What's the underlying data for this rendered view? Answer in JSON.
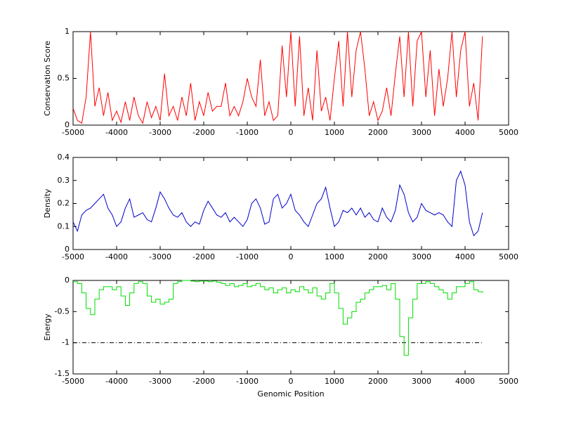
{
  "chart_data": [
    {
      "type": "line",
      "ylabel": "Conservation Score",
      "color": "#ff0000",
      "x": [
        -5000,
        -4900,
        -4800,
        -4700,
        -4600,
        -4500,
        -4400,
        -4300,
        -4200,
        -4100,
        -4000,
        -3900,
        -3800,
        -3700,
        -3600,
        -3500,
        -3400,
        -3300,
        -3200,
        -3100,
        -3000,
        -2900,
        -2800,
        -2700,
        -2600,
        -2500,
        -2400,
        -2300,
        -2200,
        -2100,
        -2000,
        -1900,
        -1800,
        -1700,
        -1600,
        -1500,
        -1400,
        -1300,
        -1200,
        -1100,
        -1000,
        -900,
        -800,
        -700,
        -600,
        -500,
        -400,
        -300,
        -200,
        -100,
        0,
        100,
        200,
        300,
        400,
        500,
        600,
        700,
        800,
        900,
        1000,
        1100,
        1200,
        1300,
        1400,
        1500,
        1600,
        1700,
        1800,
        1900,
        2000,
        2100,
        2200,
        2300,
        2400,
        2500,
        2600,
        2700,
        2800,
        2900,
        3000,
        3100,
        3200,
        3300,
        3400,
        3500,
        3600,
        3700,
        3800,
        3900,
        4000,
        4100,
        4200,
        4300,
        4400
      ],
      "values": [
        0.18,
        0.05,
        0.02,
        0.3,
        1.0,
        0.2,
        0.4,
        0.1,
        0.35,
        0.05,
        0.15,
        0.03,
        0.25,
        0.05,
        0.3,
        0.1,
        0.02,
        0.25,
        0.08,
        0.2,
        0.05,
        0.55,
        0.1,
        0.2,
        0.05,
        0.3,
        0.1,
        0.45,
        0.05,
        0.25,
        0.1,
        0.35,
        0.15,
        0.2,
        0.2,
        0.45,
        0.1,
        0.2,
        0.1,
        0.25,
        0.5,
        0.3,
        0.2,
        0.7,
        0.1,
        0.25,
        0.05,
        0.1,
        0.85,
        0.3,
        1.0,
        0.2,
        0.95,
        0.1,
        0.4,
        0.05,
        0.8,
        0.15,
        0.3,
        0.05,
        0.5,
        0.9,
        0.2,
        1.0,
        0.3,
        0.8,
        1.0,
        0.6,
        0.1,
        0.25,
        0.05,
        0.15,
        0.4,
        0.1,
        0.55,
        0.95,
        0.3,
        1.0,
        0.2,
        0.9,
        1.0,
        0.3,
        0.8,
        0.1,
        0.6,
        0.2,
        0.5,
        1.0,
        0.3,
        0.8,
        1.0,
        0.2,
        0.45,
        0.05,
        0.95
      ],
      "xlim": [
        -5000,
        5000
      ],
      "xticks": [
        -5000,
        -4000,
        -3000,
        -2000,
        -1000,
        0,
        1000,
        2000,
        3000,
        4000,
        5000
      ],
      "ylim": [
        0,
        1
      ],
      "yticks": [
        0,
        0.5,
        1
      ]
    },
    {
      "type": "line",
      "ylabel": "Density",
      "color": "#0000cc",
      "x": [
        -5000,
        -4900,
        -4800,
        -4700,
        -4600,
        -4500,
        -4400,
        -4300,
        -4200,
        -4100,
        -4000,
        -3900,
        -3800,
        -3700,
        -3600,
        -3500,
        -3400,
        -3300,
        -3200,
        -3100,
        -3000,
        -2900,
        -2800,
        -2700,
        -2600,
        -2500,
        -2400,
        -2300,
        -2200,
        -2100,
        -2000,
        -1900,
        -1800,
        -1700,
        -1600,
        -1500,
        -1400,
        -1300,
        -1200,
        -1100,
        -1000,
        -900,
        -800,
        -700,
        -600,
        -500,
        -400,
        -300,
        -200,
        -100,
        0,
        100,
        200,
        300,
        400,
        500,
        600,
        700,
        800,
        900,
        1000,
        1100,
        1200,
        1300,
        1400,
        1500,
        1600,
        1700,
        1800,
        1900,
        2000,
        2100,
        2200,
        2300,
        2400,
        2500,
        2600,
        2700,
        2800,
        2900,
        3000,
        3100,
        3200,
        3300,
        3400,
        3500,
        3600,
        3700,
        3800,
        3900,
        4000,
        4100,
        4200,
        4300,
        4400
      ],
      "values": [
        0.12,
        0.08,
        0.15,
        0.17,
        0.18,
        0.2,
        0.22,
        0.24,
        0.18,
        0.15,
        0.1,
        0.12,
        0.18,
        0.22,
        0.14,
        0.15,
        0.16,
        0.13,
        0.12,
        0.18,
        0.25,
        0.22,
        0.18,
        0.15,
        0.14,
        0.16,
        0.12,
        0.1,
        0.12,
        0.11,
        0.17,
        0.21,
        0.18,
        0.15,
        0.14,
        0.16,
        0.12,
        0.14,
        0.12,
        0.1,
        0.13,
        0.2,
        0.22,
        0.18,
        0.11,
        0.12,
        0.22,
        0.24,
        0.18,
        0.2,
        0.24,
        0.17,
        0.15,
        0.12,
        0.1,
        0.15,
        0.2,
        0.22,
        0.27,
        0.18,
        0.1,
        0.12,
        0.17,
        0.16,
        0.18,
        0.15,
        0.18,
        0.14,
        0.16,
        0.13,
        0.12,
        0.18,
        0.14,
        0.12,
        0.17,
        0.28,
        0.24,
        0.16,
        0.12,
        0.14,
        0.2,
        0.17,
        0.16,
        0.15,
        0.16,
        0.15,
        0.12,
        0.1,
        0.3,
        0.34,
        0.28,
        0.12,
        0.06,
        0.08,
        0.16
      ],
      "xlim": [
        -5000,
        5000
      ],
      "xticks": [
        -5000,
        -4000,
        -3000,
        -2000,
        -1000,
        0,
        1000,
        2000,
        3000,
        4000,
        5000
      ],
      "ylim": [
        0,
        0.4
      ],
      "yticks": [
        0,
        0.1,
        0.2,
        0.3,
        0.4
      ]
    },
    {
      "type": "step",
      "ylabel": "Energy",
      "xlabel": "Genomic Position",
      "color": "#00dd00",
      "x": [
        -5000,
        -4900,
        -4800,
        -4700,
        -4600,
        -4500,
        -4400,
        -4300,
        -4200,
        -4100,
        -4000,
        -3900,
        -3800,
        -3700,
        -3600,
        -3500,
        -3400,
        -3300,
        -3200,
        -3100,
        -3000,
        -2900,
        -2800,
        -2700,
        -2600,
        -2500,
        -2400,
        -2300,
        -2200,
        -2100,
        -2000,
        -1900,
        -1800,
        -1700,
        -1600,
        -1500,
        -1400,
        -1300,
        -1200,
        -1100,
        -1000,
        -900,
        -800,
        -700,
        -600,
        -500,
        -400,
        -300,
        -200,
        -100,
        0,
        100,
        200,
        300,
        400,
        500,
        600,
        700,
        800,
        900,
        1000,
        1100,
        1200,
        1300,
        1400,
        1500,
        1600,
        1700,
        1800,
        1900,
        2000,
        2100,
        2200,
        2300,
        2400,
        2500,
        2600,
        2700,
        2800,
        2900,
        3000,
        3100,
        3200,
        3300,
        3400,
        3500,
        3600,
        3700,
        3800,
        3900,
        4000,
        4100,
        4200,
        4300,
        4400
      ],
      "values": [
        -0.02,
        -0.05,
        -0.2,
        -0.45,
        -0.55,
        -0.3,
        -0.15,
        -0.1,
        -0.1,
        -0.15,
        -0.1,
        -0.25,
        -0.4,
        -0.2,
        -0.05,
        -0.02,
        -0.05,
        -0.25,
        -0.35,
        -0.3,
        -0.38,
        -0.35,
        -0.3,
        -0.05,
        -0.02,
        0,
        0,
        -0.01,
        -0.02,
        -0.01,
        -0.01,
        -0.02,
        -0.01,
        -0.03,
        -0.05,
        -0.08,
        -0.05,
        -0.1,
        -0.08,
        -0.05,
        -0.1,
        -0.08,
        -0.05,
        -0.1,
        -0.15,
        -0.12,
        -0.2,
        -0.15,
        -0.12,
        -0.2,
        -0.15,
        -0.18,
        -0.1,
        -0.15,
        -0.2,
        -0.12,
        -0.25,
        -0.3,
        -0.2,
        -0.05,
        -0.2,
        -0.45,
        -0.7,
        -0.6,
        -0.5,
        -0.35,
        -0.3,
        -0.2,
        -0.15,
        -0.1,
        -0.1,
        -0.08,
        -0.15,
        -0.05,
        -0.3,
        -0.9,
        -1.2,
        -0.6,
        -0.3,
        -0.05,
        -0.05,
        -0.02,
        -0.05,
        -0.1,
        -0.15,
        -0.2,
        -0.3,
        -0.2,
        -0.1,
        -0.1,
        -0.05,
        -0.02,
        -0.15,
        -0.18,
        -0.2
      ],
      "reference_line": {
        "y": -1,
        "x": [
          -5000,
          4400
        ]
      },
      "xlim": [
        -5000,
        5000
      ],
      "xticks": [
        -5000,
        -4000,
        -3000,
        -2000,
        -1000,
        0,
        1000,
        2000,
        3000,
        4000,
        5000
      ],
      "ylim": [
        -1.5,
        0
      ],
      "yticks": [
        -1.5,
        -1,
        -0.5,
        0
      ]
    }
  ]
}
